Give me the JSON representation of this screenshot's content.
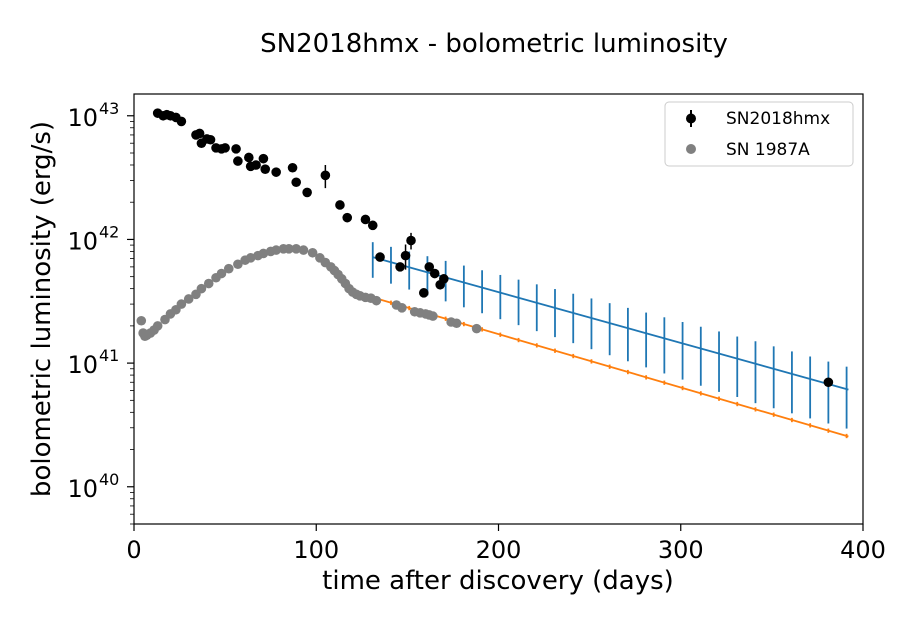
{
  "chart_data": {
    "type": "scatter",
    "title": "SN2018hmx - bolometric luminosity",
    "xlabel": "time after discovery (days)",
    "ylabel": "bolometric luminosity (erg/s)",
    "xlim": [
      0,
      400
    ],
    "ylim": [
      5e+39,
      1.5e+43
    ],
    "yscale": "log",
    "grid": false,
    "legend_position": "top-right",
    "x_ticks": [
      {
        "value": 0,
        "label": "0"
      },
      {
        "value": 100,
        "label": "100"
      },
      {
        "value": 200,
        "label": "200"
      },
      {
        "value": 300,
        "label": "300"
      },
      {
        "value": 400,
        "label": "400"
      }
    ],
    "y_ticks": [
      {
        "value": 1e+40,
        "label": "10",
        "exp": "40"
      },
      {
        "value": 1e+41,
        "label": "10",
        "exp": "41"
      },
      {
        "value": 1e+42,
        "label": "10",
        "exp": "42"
      },
      {
        "value": 1e+43,
        "label": "10",
        "exp": "43"
      }
    ],
    "series": [
      {
        "name": "SN2018hmx",
        "kind": "errorbar-points",
        "color": "#000000",
        "points": [
          {
            "x": 13,
            "y": 1.05e+43,
            "err": 3e+41
          },
          {
            "x": 16,
            "y": 1e+43,
            "err": 3e+41
          },
          {
            "x": 18,
            "y": 1.02e+43,
            "err": 3e+41
          },
          {
            "x": 20,
            "y": 1e+43,
            "err": 3e+41
          },
          {
            "x": 23,
            "y": 9.7e+42,
            "err": 3e+41
          },
          {
            "x": 26,
            "y": 9e+42,
            "err": 3e+41
          },
          {
            "x": 34,
            "y": 7e+42,
            "err": 2e+41
          },
          {
            "x": 36,
            "y": 7.2e+42,
            "err": 2e+41
          },
          {
            "x": 37,
            "y": 6e+42,
            "err": 2e+41
          },
          {
            "x": 40,
            "y": 6.5e+42,
            "err": 2e+41
          },
          {
            "x": 42,
            "y": 6.4e+42,
            "err": 2e+41
          },
          {
            "x": 45,
            "y": 5.5e+42,
            "err": 2e+41
          },
          {
            "x": 48,
            "y": 5.4e+42,
            "err": 2e+41
          },
          {
            "x": 50,
            "y": 5.5e+42,
            "err": 2e+41
          },
          {
            "x": 56,
            "y": 5.4e+42,
            "err": 2e+41
          },
          {
            "x": 57,
            "y": 4.3e+42,
            "err": 1e+41
          },
          {
            "x": 63,
            "y": 4.6e+42,
            "err": 1e+41
          },
          {
            "x": 64,
            "y": 3.9e+42,
            "err": 1e+41
          },
          {
            "x": 67,
            "y": 4e+42,
            "err": 1e+41
          },
          {
            "x": 71,
            "y": 4.5e+42,
            "err": 1e+41
          },
          {
            "x": 72,
            "y": 3.7e+42,
            "err": 1e+41
          },
          {
            "x": 78,
            "y": 3.5e+42,
            "err": 1e+41
          },
          {
            "x": 87,
            "y": 3.8e+42,
            "err": 1e+41
          },
          {
            "x": 89,
            "y": 2.9e+42,
            "err": 1e+41
          },
          {
            "x": 95,
            "y": 2.4e+42,
            "err": 1e+41
          },
          {
            "x": 105,
            "y": 3.3e+42,
            "err": 7e+41
          },
          {
            "x": 113,
            "y": 1.9e+42,
            "err": 1e+41
          },
          {
            "x": 117,
            "y": 1.5e+42,
            "err": 5e+40
          },
          {
            "x": 127,
            "y": 1.45e+42,
            "err": 5e+40
          },
          {
            "x": 131,
            "y": 1.3e+42,
            "err": 5e+40
          },
          {
            "x": 135,
            "y": 7.2e+41,
            "err": 3e+40
          },
          {
            "x": 146,
            "y": 6e+41,
            "err": 4e+40
          },
          {
            "x": 149,
            "y": 7.4e+41,
            "err": 1.7e+41
          },
          {
            "x": 152,
            "y": 9.8e+41,
            "err": 1.5e+41
          },
          {
            "x": 159,
            "y": 3.7e+41,
            "err": 2e+40
          },
          {
            "x": 162,
            "y": 6e+41,
            "err": 3e+40
          },
          {
            "x": 165,
            "y": 5.3e+41,
            "err": 3e+40
          },
          {
            "x": 168,
            "y": 4.3e+41,
            "err": 3e+40
          },
          {
            "x": 170,
            "y": 4.8e+41,
            "err": 4e+40
          },
          {
            "x": 381,
            "y": 7e+40,
            "err": 5e+39
          }
        ]
      },
      {
        "name": "SN 1987A",
        "kind": "points",
        "color": "#808080",
        "points": [
          {
            "x": 4,
            "y": 2.2e+41
          },
          {
            "x": 5,
            "y": 1.75e+41
          },
          {
            "x": 6,
            "y": 1.65e+41
          },
          {
            "x": 7,
            "y": 1.68e+41
          },
          {
            "x": 9,
            "y": 1.75e+41
          },
          {
            "x": 11,
            "y": 1.85e+41
          },
          {
            "x": 13,
            "y": 2e+41
          },
          {
            "x": 17,
            "y": 2.25e+41
          },
          {
            "x": 20,
            "y": 2.5e+41
          },
          {
            "x": 23,
            "y": 2.7e+41
          },
          {
            "x": 26,
            "y": 3e+41
          },
          {
            "x": 30,
            "y": 3.3e+41
          },
          {
            "x": 34,
            "y": 3.6e+41
          },
          {
            "x": 37,
            "y": 4e+41
          },
          {
            "x": 41,
            "y": 4.4e+41
          },
          {
            "x": 45,
            "y": 4.9e+41
          },
          {
            "x": 48,
            "y": 5.3e+41
          },
          {
            "x": 52,
            "y": 5.8e+41
          },
          {
            "x": 57,
            "y": 6.3e+41
          },
          {
            "x": 61,
            "y": 6.8e+41
          },
          {
            "x": 64,
            "y": 7.1e+41
          },
          {
            "x": 68,
            "y": 7.4e+41
          },
          {
            "x": 71,
            "y": 7.7e+41
          },
          {
            "x": 75,
            "y": 8e+41
          },
          {
            "x": 78,
            "y": 8.2e+41
          },
          {
            "x": 82,
            "y": 8.4e+41
          },
          {
            "x": 85,
            "y": 8.4e+41
          },
          {
            "x": 89,
            "y": 8.4e+41
          },
          {
            "x": 93,
            "y": 8.2e+41
          },
          {
            "x": 98,
            "y": 7.8e+41
          },
          {
            "x": 102,
            "y": 7.1e+41
          },
          {
            "x": 105,
            "y": 6.5e+41
          },
          {
            "x": 108,
            "y": 6e+41
          },
          {
            "x": 110,
            "y": 5.6e+41
          },
          {
            "x": 112,
            "y": 5.2e+41
          },
          {
            "x": 114,
            "y": 4.8e+41
          },
          {
            "x": 116,
            "y": 4.4e+41
          },
          {
            "x": 118,
            "y": 4e+41
          },
          {
            "x": 120,
            "y": 3.75e+41
          },
          {
            "x": 122,
            "y": 3.6e+41
          },
          {
            "x": 124,
            "y": 3.5e+41
          },
          {
            "x": 127,
            "y": 3.4e+41
          },
          {
            "x": 130,
            "y": 3.35e+41
          },
          {
            "x": 133,
            "y": 3.2e+41
          },
          {
            "x": 144,
            "y": 2.95e+41
          },
          {
            "x": 147,
            "y": 2.8e+41
          },
          {
            "x": 154,
            "y": 2.6e+41
          },
          {
            "x": 157,
            "y": 2.55e+41
          },
          {
            "x": 160,
            "y": 2.5e+41
          },
          {
            "x": 162,
            "y": 2.45e+41
          },
          {
            "x": 164,
            "y": 2.4e+41
          },
          {
            "x": 174,
            "y": 2.15e+41
          },
          {
            "x": 177,
            "y": 2.1e+41
          },
          {
            "x": 188,
            "y": 1.9e+41
          }
        ]
      },
      {
        "kind": "fit-line",
        "color": "#1f77b4",
        "x_start": 131,
        "y_start": 7.2e+41,
        "x_end": 392,
        "y_end": 6.1e+40,
        "errorbar_x": [
          131,
          141,
          151,
          161,
          171,
          181,
          191,
          201,
          211,
          221,
          231,
          241,
          251,
          261,
          271,
          281,
          291,
          301,
          311,
          321,
          331,
          341,
          351,
          361,
          371,
          381,
          391
        ],
        "errorbar_rel_low": [
          0.32,
          0.33,
          0.34,
          0.35,
          0.36,
          0.37,
          0.38,
          0.39,
          0.4,
          0.41,
          0.42,
          0.43,
          0.44,
          0.45,
          0.46,
          0.47,
          0.48,
          0.49,
          0.5,
          0.51,
          0.51,
          0.52,
          0.52,
          0.52,
          0.52,
          0.52,
          0.52
        ],
        "errorbar_rel_high": [
          0.32,
          0.33,
          0.34,
          0.35,
          0.36,
          0.37,
          0.38,
          0.39,
          0.4,
          0.41,
          0.42,
          0.43,
          0.44,
          0.45,
          0.46,
          0.47,
          0.48,
          0.49,
          0.5,
          0.51,
          0.51,
          0.52,
          0.52,
          0.52,
          0.52,
          0.52,
          0.52
        ]
      },
      {
        "kind": "fit-line",
        "color": "#ff7f0e",
        "x_start": 131,
        "y_start": 3.4e+41,
        "x_end": 392,
        "y_end": 2.55e+40,
        "errorbar_x": [
          131,
          141,
          151,
          161,
          171,
          181,
          191,
          201,
          211,
          221,
          231,
          241,
          251,
          261,
          271,
          281,
          291,
          301,
          311,
          321,
          331,
          341,
          351,
          361,
          371,
          381,
          391
        ],
        "errorbar_rel_low": [
          0.04,
          0.04,
          0.04,
          0.04,
          0.04,
          0.04,
          0.04,
          0.04,
          0.04,
          0.04,
          0.04,
          0.04,
          0.04,
          0.04,
          0.04,
          0.04,
          0.04,
          0.04,
          0.04,
          0.04,
          0.04,
          0.04,
          0.04,
          0.04,
          0.04,
          0.04,
          0.04
        ],
        "errorbar_rel_high": [
          0.04,
          0.04,
          0.04,
          0.04,
          0.04,
          0.04,
          0.04,
          0.04,
          0.04,
          0.04,
          0.04,
          0.04,
          0.04,
          0.04,
          0.04,
          0.04,
          0.04,
          0.04,
          0.04,
          0.04,
          0.04,
          0.04,
          0.04,
          0.04,
          0.04,
          0.04,
          0.04
        ]
      }
    ],
    "legend": [
      {
        "label": "SN2018hmx",
        "marker": "errorbar",
        "color": "#000000"
      },
      {
        "label": "SN 1987A",
        "marker": "point",
        "color": "#808080"
      }
    ]
  }
}
